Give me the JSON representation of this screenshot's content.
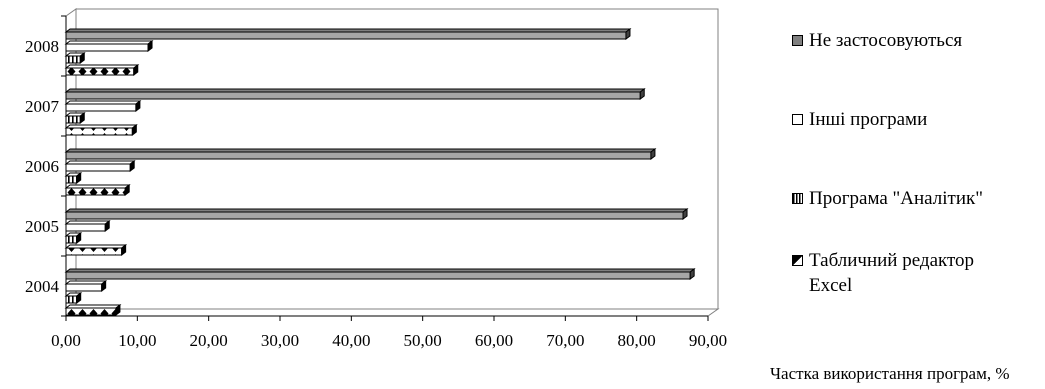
{
  "chart_data": {
    "type": "bar",
    "orientation": "horizontal",
    "style": "3d-clustered",
    "categories": [
      "2004",
      "2005",
      "2006",
      "2007",
      "2008"
    ],
    "series": [
      {
        "name": "Табличний редактор Excel",
        "values": [
          7.0,
          7.8,
          8.3,
          9.3,
          9.5
        ],
        "color": "#ffffff",
        "pattern": "diamonds"
      },
      {
        "name": "Програма \"Аналітик\"",
        "values": [
          1.5,
          1.5,
          1.5,
          2.0,
          2.0
        ],
        "color": "#ffffff",
        "pattern": "vertical-stripes"
      },
      {
        "name": "Інші програми",
        "values": [
          5.0,
          5.5,
          9.0,
          9.8,
          11.5
        ],
        "color": "#ffffff",
        "pattern": "none"
      },
      {
        "name": "Не застосовуються",
        "values": [
          87.5,
          86.5,
          82.0,
          80.5,
          78.5
        ],
        "color": "#a6a6a6",
        "pattern": "solid"
      }
    ],
    "x_ticks": [
      "0,00",
      "10,00",
      "20,00",
      "30,00",
      "40,00",
      "50,00",
      "60,00",
      "70,00",
      "80,00",
      "90,00"
    ],
    "xlim": [
      0,
      90
    ],
    "xlabel": "Частка використання програм, %",
    "ylabel": "",
    "title": "",
    "grid": false,
    "legend_position": "right",
    "colors": {
      "legend_solid": "#808080",
      "bar_dark": "#a6a6a6",
      "outline": "#000000"
    }
  }
}
